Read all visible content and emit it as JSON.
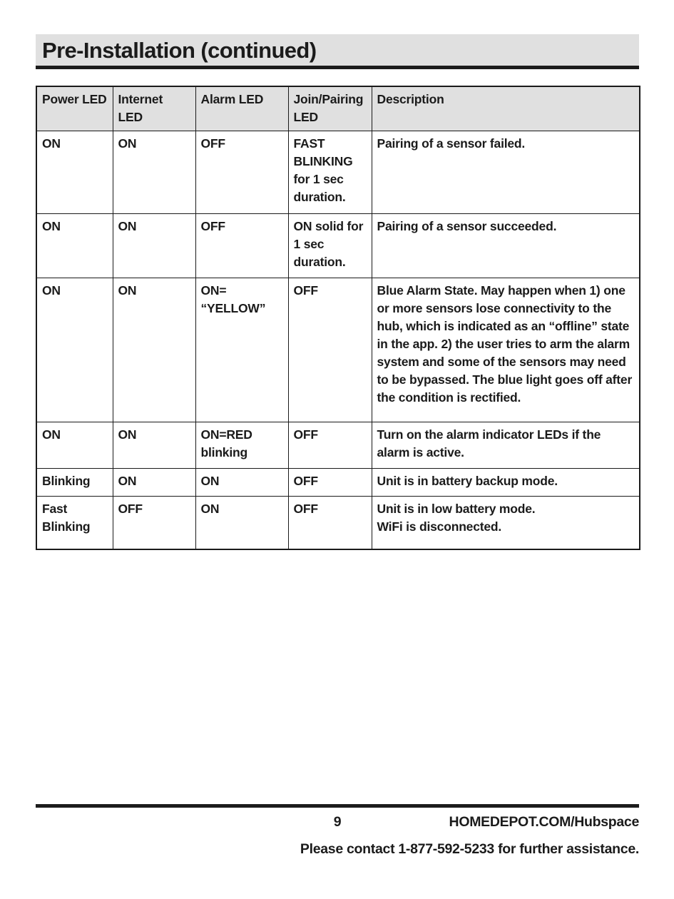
{
  "title": "Pre-Installation (continued)",
  "colors": {
    "header_bg": "#e0e0e0",
    "text": "#1b1b1b",
    "border": "#1a1a1a",
    "page_bg": "#ffffff"
  },
  "table": {
    "headers": [
      "Power LED",
      "Internet LED",
      "Alarm LED",
      "Join/Pairing LED",
      "Description"
    ],
    "rows": [
      [
        "ON",
        "ON",
        "OFF",
        "FAST\nBLINKING\nfor 1 sec\nduration.",
        "Pairing of a sensor failed."
      ],
      [
        "ON",
        "ON",
        "OFF",
        "ON solid for\n1 sec\nduration.",
        "Pairing of a sensor succeeded."
      ],
      [
        "ON",
        "ON",
        "ON=\n“YELLOW”",
        "OFF",
        "Blue Alarm State. May happen when 1) one or more sensors lose connectivity to the hub, which is indicated as an “offline” state in the app. 2) the user tries to arm the alarm system and some of the sensors may need to be bypassed. The blue light goes off after the condition is rectified."
      ],
      [
        "ON",
        "ON",
        "ON=RED\nblinking",
        "OFF",
        "Turn on the alarm indicator LEDs if the alarm is active."
      ],
      [
        "Blinking",
        "ON",
        "ON",
        "OFF",
        "Unit is in battery backup mode."
      ],
      [
        "Fast\nBlinking",
        "OFF",
        "ON",
        "OFF",
        "Unit is in low battery mode.\nWiFi is disconnected."
      ]
    ]
  },
  "footer": {
    "page_number": "9",
    "website": "HOMEDEPOT.COM/Hubspace",
    "contact": "Please contact 1-877-592-5233 for further assistance."
  }
}
